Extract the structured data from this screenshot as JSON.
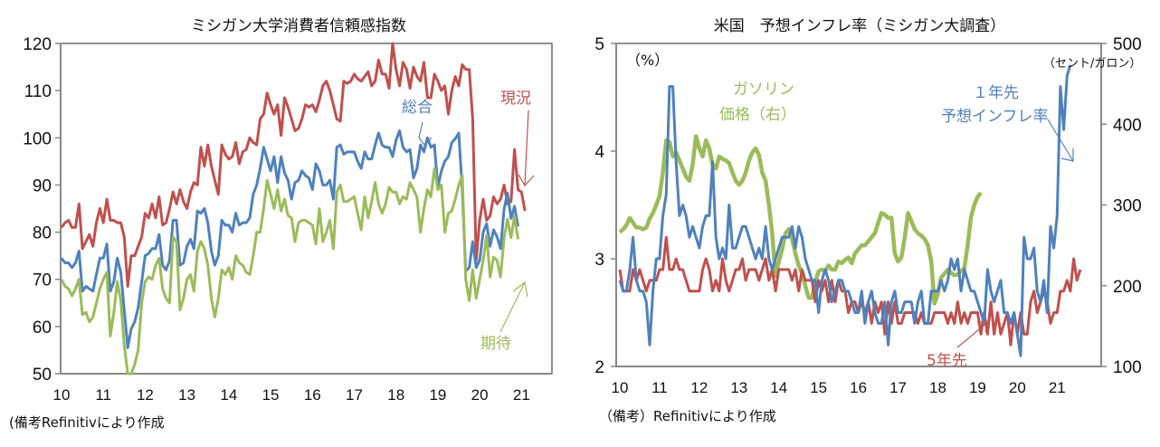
{
  "chart_data": [
    {
      "type": "line",
      "title": "ミシガン大学消費者信頼感指数",
      "xlabel": "",
      "ylabel": "",
      "ylim": [
        50,
        120
      ],
      "yticks": [
        "50",
        "60",
        "70",
        "80",
        "90",
        "100",
        "110",
        "120"
      ],
      "xticks": [
        "10",
        "11",
        "12",
        "13",
        "14",
        "15",
        "16",
        "17",
        "18",
        "19",
        "20",
        "21"
      ],
      "x_start": "2010-01",
      "x_frequency": "monthly",
      "grid": false,
      "note": "(備考Refinitivにより作成",
      "annotations": [
        {
          "text": "総合",
          "series": "総合"
        },
        {
          "text": "現況",
          "series": "現況"
        },
        {
          "text": "期待",
          "series": "期待"
        }
      ],
      "series": [
        {
          "name": "現況",
          "color": "#C0504D",
          "values": [
            81,
            82,
            82.5,
            81,
            81,
            86,
            76.5,
            78,
            79.5,
            77,
            82,
            85,
            82,
            87,
            82.5,
            82.5,
            82,
            82,
            79,
            68.5,
            75,
            75,
            77,
            79,
            84,
            83,
            86,
            83,
            87.5,
            81.5,
            82,
            85,
            88.5,
            86,
            89,
            86.5,
            85,
            88.5,
            90.5,
            90,
            98,
            94,
            98.5,
            94,
            91,
            88,
            98.5,
            96.5,
            95.5,
            96,
            99,
            94.5,
            97,
            97.5,
            100,
            99,
            98.5,
            104,
            105,
            109.5,
            107,
            105,
            107,
            100.5,
            108.5,
            106.5,
            104,
            101.5,
            102,
            104,
            107,
            106.5,
            107,
            105.5,
            108,
            111,
            112,
            110,
            107,
            104,
            103.5,
            112,
            111.5,
            112,
            113.5,
            112.5,
            112,
            113,
            114,
            111,
            112,
            116.5,
            113.5,
            113.5,
            110.5,
            120,
            114.5,
            111,
            116,
            114.5,
            110.5,
            115,
            113,
            112,
            116,
            108.5,
            108.5,
            113.5,
            112,
            110,
            111,
            105,
            110,
            113,
            111,
            115.5,
            114.5,
            114.5,
            104,
            74,
            82.5,
            87,
            82.5,
            83.5,
            87.5,
            86,
            87,
            90,
            86,
            86.5,
            97.5,
            89,
            88.5,
            84.5
          ]
        },
        {
          "name": "総合",
          "color": "#4F81BD",
          "values": [
            74.5,
            73.5,
            73.5,
            72.5,
            73.5,
            76,
            67.5,
            68.5,
            68,
            67.5,
            71,
            74.5,
            74.5,
            77.5,
            67.5,
            69.5,
            74.5,
            71.5,
            63.5,
            55.5,
            59.5,
            61,
            64,
            69.5,
            75,
            75.5,
            76.5,
            76.5,
            79.5,
            73,
            72,
            74,
            82.5,
            82.5,
            73,
            73.5,
            77,
            78.5,
            76.5,
            84.5,
            84,
            85,
            82,
            76,
            73,
            75,
            82.5,
            81.5,
            81.5,
            80,
            84,
            81.5,
            82,
            82,
            83,
            88,
            90,
            93.5,
            98,
            95.5,
            93,
            96,
            90.5,
            96,
            92.5,
            91,
            87,
            90.5,
            91,
            93,
            92,
            91.5,
            89,
            94.5,
            93,
            90,
            90,
            91,
            87,
            98,
            98.5,
            96.5,
            97,
            97,
            97,
            95,
            93.5,
            97,
            95.5,
            95.5,
            98.5,
            101,
            98.5,
            98,
            98,
            96,
            99.5,
            101.5,
            98,
            97,
            97.5,
            91.5,
            93.5,
            98.5,
            97,
            100,
            98,
            98.5,
            89.5,
            93,
            95,
            96,
            99,
            99.8,
            101,
            89,
            71.8,
            72.5,
            78,
            72.5,
            74,
            80,
            81.8,
            77,
            80.5,
            79,
            76.5,
            84.9,
            88.3,
            82.9,
            85.5,
            81.2
          ]
        },
        {
          "name": "期待",
          "color": "#9BBB59",
          "values": [
            70,
            68.5,
            68,
            66.5,
            68,
            70,
            62.5,
            63,
            61,
            62,
            65,
            68,
            70,
            71.5,
            58,
            63,
            69.5,
            65.5,
            56,
            48,
            49.5,
            52,
            55,
            65,
            69.5,
            70.5,
            70,
            73,
            74.5,
            68,
            66,
            65,
            79,
            78,
            63.5,
            66,
            70,
            71,
            67.5,
            76,
            78,
            76.5,
            73,
            66,
            62,
            66,
            72,
            71,
            72.5,
            70,
            75,
            73.5,
            73,
            71.5,
            71,
            75,
            80,
            80,
            85,
            91,
            88,
            85,
            89,
            84.5,
            87,
            83.5,
            83,
            78,
            82,
            82.5,
            82.5,
            82,
            81.5,
            77.5,
            85,
            78,
            80,
            82.5,
            76.5,
            88.5,
            90,
            86.5,
            86.5,
            87,
            87.5,
            84,
            80.5,
            87.5,
            83,
            86.5,
            90.5,
            86,
            84,
            86,
            89.5,
            88.5,
            88.5,
            86,
            87.5,
            87,
            90.5,
            89,
            87.5,
            80,
            85,
            89,
            87.5,
            93.5,
            89,
            90,
            80,
            84,
            84.5,
            87,
            90,
            92,
            70,
            65.5,
            72,
            66,
            70,
            74,
            79.3,
            70.5,
            74.7,
            74,
            70.5,
            78.8,
            82.7,
            78.8,
            83.5,
            78.5
          ]
        }
      ]
    },
    {
      "type": "line",
      "title": "米国　予想インフレ率（ミシガン大調査）",
      "xlabel": "",
      "ylabel_left": "（%）",
      "ylabel_right": "（セント/ガロン）",
      "ylim": [
        2,
        5
      ],
      "ylim_right": [
        100,
        500
      ],
      "yticks": [
        "2",
        "3",
        "4",
        "5"
      ],
      "yticks_right": [
        "100",
        "200",
        "300",
        "400",
        "500"
      ],
      "xticks": [
        "10",
        "11",
        "12",
        "13",
        "14",
        "15",
        "16",
        "17",
        "18",
        "19",
        "20",
        "21"
      ],
      "x_start": "2010-01",
      "x_frequency": "monthly",
      "grid": false,
      "note": "（備考）Refinitivにより作成",
      "annotations": [
        {
          "text": "ガソリン価格（右）",
          "series": "ガソリン価格（右）"
        },
        {
          "text": "１年先予想インフレ率",
          "series": "1年先予想インフレ率"
        },
        {
          "text": "5年先",
          "series": "5年先予想インフレ率"
        }
      ],
      "series": [
        {
          "name": "1年先予想インフレ率",
          "color": "#4F81BD",
          "axis": "left",
          "values": [
            2.8,
            2.7,
            2.7,
            2.9,
            3.2,
            2.8,
            2.7,
            2.7,
            2.6,
            2.2,
            2.7,
            3.0,
            3.0,
            3.4,
            3.6,
            4.6,
            4.6,
            3.9,
            3.4,
            3.5,
            3.4,
            3.2,
            3.3,
            3.2,
            3.1,
            3.3,
            3.4,
            3.4,
            3.9,
            3.2,
            3.0,
            3.1,
            3.0,
            3.5,
            3.1,
            3.1,
            3.2,
            3.3,
            3.3,
            3.2,
            3.1,
            3.0,
            3.1,
            3.0,
            3.3,
            3.0,
            2.9,
            3.0,
            3.1,
            3.2,
            3.2,
            3.2,
            3.3,
            3.1,
            3.3,
            3.2,
            3.0,
            2.9,
            2.8,
            2.8,
            2.5,
            2.8,
            2.9,
            2.8,
            2.6,
            2.7,
            2.8,
            2.8,
            2.7,
            2.7,
            2.6,
            2.5,
            2.5,
            2.7,
            2.4,
            2.6,
            2.7,
            2.5,
            2.4,
            2.4,
            2.6,
            2.2,
            2.6,
            2.7,
            2.5,
            2.5,
            2.6,
            2.6,
            2.6,
            2.4,
            2.6,
            2.7,
            2.4,
            2.4,
            2.7,
            2.7,
            2.7,
            2.8,
            2.7,
            2.8,
            3.0,
            2.9,
            3.0,
            2.7,
            2.9,
            2.8,
            2.7,
            2.7,
            2.6,
            2.5,
            2.4,
            2.9,
            2.7,
            2.6,
            2.7,
            2.8,
            2.5,
            2.5,
            2.4,
            2.5,
            2.3,
            2.1,
            3.2,
            3.0,
            3.0,
            3.1,
            2.7,
            2.6,
            2.8,
            2.5,
            3.3,
            3.1,
            3.4,
            4.6,
            4.2,
            4.7,
            4.8
          ]
        },
        {
          "name": "5年先予想インフレ率",
          "color": "#C0504D",
          "axis": "left",
          "values": [
            2.9,
            2.7,
            2.7,
            2.7,
            2.9,
            2.8,
            2.9,
            2.8,
            2.7,
            2.8,
            2.8,
            2.8,
            2.9,
            2.9,
            3.2,
            2.9,
            2.9,
            3.0,
            2.9,
            2.9,
            2.8,
            2.7,
            2.7,
            2.7,
            2.7,
            2.9,
            3.0,
            2.9,
            2.7,
            2.8,
            2.7,
            3.0,
            2.8,
            2.7,
            2.8,
            2.9,
            2.9,
            3.0,
            2.8,
            2.9,
            2.9,
            2.9,
            2.8,
            2.9,
            3.0,
            2.8,
            2.9,
            2.7,
            2.9,
            2.9,
            2.9,
            2.9,
            2.8,
            2.9,
            2.7,
            2.9,
            2.8,
            2.8,
            2.8,
            2.6,
            2.8,
            2.7,
            2.8,
            2.6,
            2.8,
            2.6,
            2.8,
            2.7,
            2.7,
            2.5,
            2.6,
            2.6,
            2.5,
            2.6,
            2.5,
            2.6,
            2.4,
            2.6,
            2.5,
            2.6,
            2.3,
            2.6,
            2.4,
            2.6,
            2.4,
            2.4,
            2.5,
            2.5,
            2.5,
            2.5,
            2.4,
            2.5,
            2.4,
            2.4,
            2.4,
            2.5,
            2.5,
            2.5,
            2.5,
            2.4,
            2.5,
            2.4,
            2.6,
            2.4,
            2.5,
            2.4,
            2.5,
            2.5,
            2.5,
            2.3,
            2.5,
            2.3,
            2.6,
            2.3,
            2.5,
            2.3,
            2.4,
            2.5,
            2.2,
            2.5,
            2.3,
            2.5,
            2.3,
            2.3,
            2.6,
            2.7,
            2.5,
            2.6,
            2.7,
            2.6,
            2.4,
            2.5,
            2.5,
            2.7,
            2.7,
            2.8,
            2.7,
            3.0,
            2.8,
            2.9
          ]
        },
        {
          "name": "ガソリン価格（右）",
          "color": "#9BBB59",
          "axis": "right",
          "values": [
            266,
            270,
            275,
            284,
            278,
            272,
            272,
            270,
            272,
            283,
            290,
            300,
            311,
            340,
            380,
            378,
            360,
            365,
            355,
            345,
            335,
            330,
            350,
            385,
            370,
            360,
            380,
            370,
            350,
            345,
            360,
            357,
            355,
            352,
            340,
            330,
            325,
            330,
            340,
            355,
            365,
            370,
            362,
            340,
            330,
            300,
            265,
            212,
            230,
            245,
            265,
            270,
            258,
            240,
            225,
            215,
            200,
            185,
            185,
            205,
            218,
            220,
            218,
            225,
            220,
            220,
            230,
            228,
            232,
            235,
            228,
            240,
            245,
            250,
            250,
            255,
            260,
            265,
            278,
            290,
            288,
            284,
            284,
            240,
            230,
            235,
            260,
            290,
            280,
            270,
            265,
            262,
            258,
            250,
            230,
            178,
            190,
            210,
            215,
            220,
            216,
            213,
            214,
            218,
            222,
            250,
            285,
            300,
            310,
            315
          ]
        }
      ]
    }
  ]
}
